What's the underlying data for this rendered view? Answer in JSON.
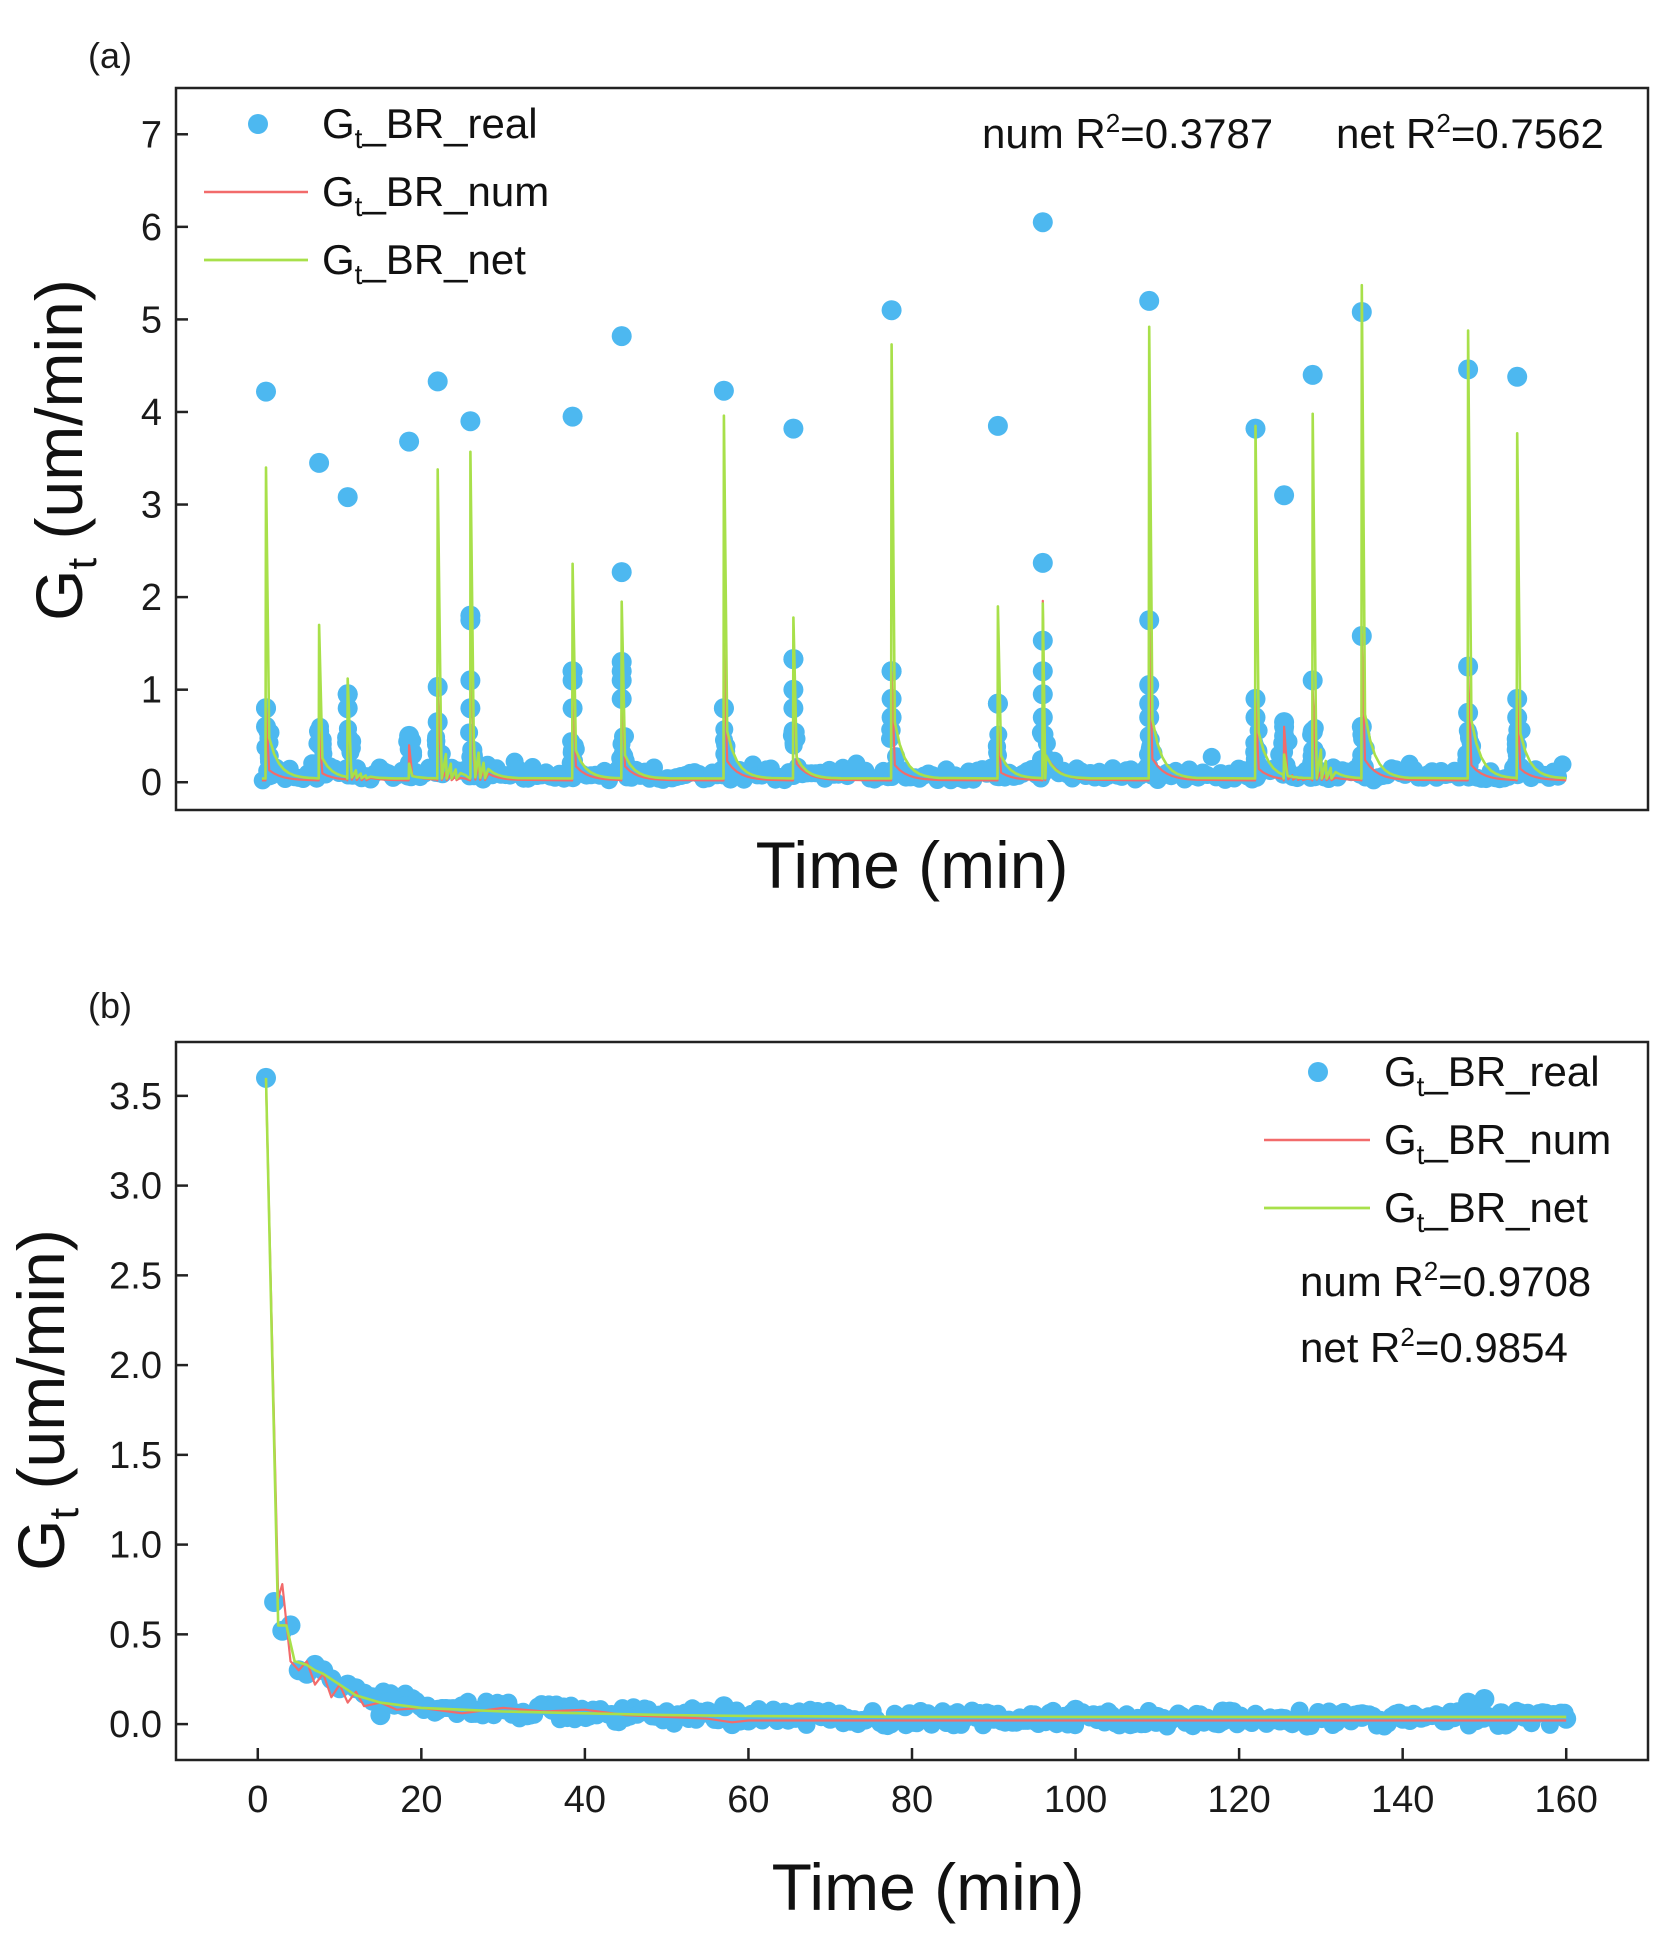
{
  "colors": {
    "real": "#4db8f0",
    "num": "#f26b6b",
    "net": "#a8e04a",
    "axis": "#222222"
  },
  "chart_data": [
    {
      "panel": "(a)",
      "type": "scatter+line",
      "title": "",
      "xlabel": "Time (min)",
      "ylabel_main": "G",
      "ylabel_sub": "t",
      "ylabel_unit": " (um/min)",
      "xlim": [
        -10,
        170
      ],
      "ylim": [
        -0.3,
        7.5
      ],
      "xticks": [],
      "yticks": [
        0,
        1,
        2,
        3,
        4,
        5,
        6,
        7
      ],
      "ytick_labels": [
        "0",
        "1",
        "2",
        "3",
        "4",
        "5",
        "6",
        "7"
      ],
      "legend_position": "top-left",
      "series": [
        {
          "name_main": "G",
          "name_sub": "t",
          "name_rest": "_BR_real",
          "kind": "scatter",
          "color": "#4db8f0"
        },
        {
          "name_main": "G",
          "name_sub": "t",
          "name_rest": "_BR_num",
          "kind": "line",
          "color": "#f26b6b"
        },
        {
          "name_main": "G",
          "name_sub": "t",
          "name_rest": "_BR_net",
          "kind": "line",
          "color": "#a8e04a"
        }
      ],
      "annotations": [
        {
          "prefix": "num R",
          "sup": "2",
          "suffix": "=0.3787"
        },
        {
          "prefix": "net R",
          "sup": "2",
          "suffix": "=0.7562"
        }
      ],
      "events": [
        {
          "x": 1,
          "real": 4.22,
          "net": 3.4,
          "num": 0.8,
          "second": 0.8,
          "inter": [
            0.6,
            0.8
          ]
        },
        {
          "x": 7.5,
          "real": 3.45,
          "net": 1.7,
          "num": 0.55,
          "second": 0.55,
          "inter": [
            0.55
          ]
        },
        {
          "x": 11,
          "real": 3.08,
          "net": 1.12,
          "num": 0.95,
          "second": 0.95,
          "inter": [
            0.95,
            0.8
          ]
        },
        {
          "x": 18.5,
          "real": 3.68,
          "net": 0.2,
          "num": 0.4,
          "second": 0.5,
          "inter": [
            0.45
          ]
        },
        {
          "x": 22,
          "real": 4.33,
          "net": 3.38,
          "num": 1.0,
          "second": 1.03,
          "inter": [
            0.65
          ]
        },
        {
          "x": 26,
          "real": 3.9,
          "net": 3.57,
          "num": 1.7,
          "second": 1.8,
          "inter": [
            1.75,
            1.1,
            0.8
          ]
        },
        {
          "x": 38.5,
          "real": 3.95,
          "net": 2.36,
          "num": 1.1,
          "second": 1.2,
          "inter": [
            1.2,
            1.1,
            0.8
          ]
        },
        {
          "x": 44.5,
          "real": 4.82,
          "net": 1.95,
          "num": 1.1,
          "second": 2.27,
          "inter": [
            1.3,
            1.2,
            1.1,
            0.9
          ]
        },
        {
          "x": 57,
          "real": 4.23,
          "net": 3.96,
          "num": 1.5,
          "second": 0.8,
          "inter": [
            0.8
          ]
        },
        {
          "x": 65.5,
          "real": 3.82,
          "net": 1.78,
          "num": 1.3,
          "second": 1.33,
          "inter": [
            1.33,
            1.0,
            0.8
          ]
        },
        {
          "x": 77.5,
          "real": 5.1,
          "net": 4.73,
          "num": 1.2,
          "second": 1.2,
          "inter": [
            1.2,
            0.9,
            0.7
          ]
        },
        {
          "x": 90.5,
          "real": 3.85,
          "net": 1.9,
          "num": 0.6,
          "second": 0.85,
          "inter": [
            0.85
          ]
        },
        {
          "x": 96,
          "real": 6.05,
          "net": 1.93,
          "num": 1.96,
          "second": 2.37,
          "inter": [
            1.53,
            1.2,
            0.95,
            0.7
          ]
        },
        {
          "x": 109,
          "real": 5.2,
          "net": 4.92,
          "num": 1.7,
          "second": 1.75,
          "inter": [
            1.05,
            0.85,
            0.7
          ]
        },
        {
          "x": 122,
          "real": 3.82,
          "net": 3.85,
          "num": 0.9,
          "second": 0.9,
          "inter": [
            0.7
          ]
        },
        {
          "x": 125.5,
          "real": 3.1,
          "net": 0.3,
          "num": 0.6,
          "second": 0.65,
          "inter": [
            0.6,
            0.5
          ]
        },
        {
          "x": 129,
          "real": 4.4,
          "net": 3.98,
          "num": 1.0,
          "second": 1.1,
          "inter": [
            0.55
          ]
        },
        {
          "x": 135,
          "real": 5.08,
          "net": 5.37,
          "num": 1.6,
          "second": 1.58,
          "inter": [
            0.6
          ]
        },
        {
          "x": 148,
          "real": 4.46,
          "net": 4.88,
          "num": 1.2,
          "second": 1.25,
          "inter": [
            0.75
          ]
        },
        {
          "x": 154,
          "real": 4.38,
          "net": 3.77,
          "num": 0.9,
          "second": 0.9,
          "inter": [
            0.7
          ]
        }
      ]
    },
    {
      "panel": "(b)",
      "type": "scatter+line",
      "title": "",
      "xlabel": "Time (min)",
      "ylabel_main": "G",
      "ylabel_sub": "t",
      "ylabel_unit": " (um/min)",
      "xlim": [
        -10,
        170
      ],
      "ylim": [
        -0.2,
        3.8
      ],
      "xticks": [
        0,
        20,
        40,
        60,
        80,
        100,
        120,
        140,
        160
      ],
      "xtick_labels": [
        "0",
        "20",
        "40",
        "60",
        "80",
        "100",
        "120",
        "140",
        "160"
      ],
      "yticks": [
        0.0,
        0.5,
        1.0,
        1.5,
        2.0,
        2.5,
        3.0,
        3.5
      ],
      "ytick_labels": [
        "0.0",
        "0.5",
        "1.0",
        "1.5",
        "2.0",
        "2.5",
        "3.0",
        "3.5"
      ],
      "legend_position": "top-right",
      "series": [
        {
          "name_main": "G",
          "name_sub": "t",
          "name_rest": "_BR_real",
          "kind": "scatter",
          "color": "#4db8f0"
        },
        {
          "name_main": "G",
          "name_sub": "t",
          "name_rest": "_BR_num",
          "kind": "line",
          "color": "#f26b6b"
        },
        {
          "name_main": "G",
          "name_sub": "t",
          "name_rest": "_BR_net",
          "kind": "line",
          "color": "#a8e04a"
        }
      ],
      "annotations": [
        {
          "prefix": "num R",
          "sup": "2",
          "suffix": "=0.9708"
        },
        {
          "prefix": "net R",
          "sup": "2",
          "suffix": "=0.9854"
        }
      ],
      "real_points": [
        [
          1,
          3.6
        ],
        [
          2,
          0.68
        ],
        [
          3,
          0.52
        ],
        [
          4,
          0.55
        ],
        [
          5,
          0.3
        ],
        [
          6,
          0.28
        ],
        [
          7,
          0.33
        ],
        [
          8,
          0.3
        ],
        [
          9,
          0.25
        ],
        [
          10,
          0.2
        ],
        [
          11,
          0.22
        ],
        [
          12,
          0.2
        ],
        [
          13,
          0.17
        ],
        [
          14,
          0.15
        ],
        [
          15,
          0.05
        ],
        [
          16,
          0.12
        ],
        [
          17,
          0.13
        ],
        [
          18,
          0.1
        ],
        [
          20,
          0.1
        ],
        [
          22,
          0.08
        ],
        [
          25,
          0.1
        ],
        [
          28,
          0.07
        ],
        [
          30,
          0.09
        ],
        [
          33,
          0.05
        ],
        [
          36,
          0.08
        ],
        [
          40,
          0.06
        ],
        [
          45,
          0.04
        ],
        [
          50,
          0.05
        ],
        [
          55,
          0.07
        ],
        [
          57,
          0.1
        ],
        [
          58,
          0.0
        ],
        [
          60,
          0.02
        ],
        [
          65,
          0.05
        ],
        [
          70,
          0.03
        ],
        [
          75,
          0.04
        ],
        [
          80,
          0.02
        ],
        [
          85,
          0.05
        ],
        [
          90,
          0.03
        ],
        [
          95,
          0.02
        ],
        [
          100,
          0.08
        ],
        [
          105,
          0.02
        ],
        [
          110,
          0.04
        ],
        [
          115,
          0.02
        ],
        [
          118,
          0.07
        ],
        [
          120,
          0.03
        ],
        [
          125,
          0.02
        ],
        [
          130,
          0.05
        ],
        [
          135,
          0.04
        ],
        [
          140,
          0.03
        ],
        [
          145,
          0.02
        ],
        [
          148,
          0.12
        ],
        [
          150,
          0.14
        ],
        [
          152,
          0.06
        ],
        [
          155,
          0.04
        ],
        [
          160,
          0.03
        ]
      ],
      "num_line": [
        [
          1,
          3.58
        ],
        [
          2.5,
          0.7
        ],
        [
          3,
          0.78
        ],
        [
          4,
          0.35
        ],
        [
          5,
          0.3
        ],
        [
          6,
          0.35
        ],
        [
          7,
          0.22
        ],
        [
          8,
          0.28
        ],
        [
          9,
          0.15
        ],
        [
          10,
          0.22
        ],
        [
          11,
          0.12
        ],
        [
          12,
          0.18
        ],
        [
          13,
          0.1
        ],
        [
          15,
          0.12
        ],
        [
          17,
          0.08
        ],
        [
          20,
          0.09
        ],
        [
          25,
          0.06
        ],
        [
          30,
          0.09
        ],
        [
          35,
          0.07
        ],
        [
          40,
          0.08
        ],
        [
          45,
          0.05
        ],
        [
          50,
          0.04
        ],
        [
          55,
          0.03
        ],
        [
          58,
          0.01
        ],
        [
          60,
          0.02
        ],
        [
          70,
          0.02
        ],
        [
          80,
          0.02
        ],
        [
          100,
          0.02
        ],
        [
          120,
          0.02
        ],
        [
          140,
          0.02
        ],
        [
          160,
          0.02
        ]
      ],
      "net_line": [
        [
          1,
          3.6
        ],
        [
          2.5,
          0.55
        ],
        [
          3.5,
          0.55
        ],
        [
          4.5,
          0.35
        ],
        [
          6,
          0.33
        ],
        [
          7,
          0.3
        ],
        [
          8,
          0.28
        ],
        [
          10,
          0.22
        ],
        [
          12,
          0.16
        ],
        [
          15,
          0.12
        ],
        [
          20,
          0.09
        ],
        [
          25,
          0.08
        ],
        [
          30,
          0.07
        ],
        [
          40,
          0.06
        ],
        [
          50,
          0.05
        ],
        [
          60,
          0.045
        ],
        [
          80,
          0.04
        ],
        [
          100,
          0.04
        ],
        [
          120,
          0.04
        ],
        [
          140,
          0.04
        ],
        [
          160,
          0.04
        ]
      ]
    }
  ]
}
